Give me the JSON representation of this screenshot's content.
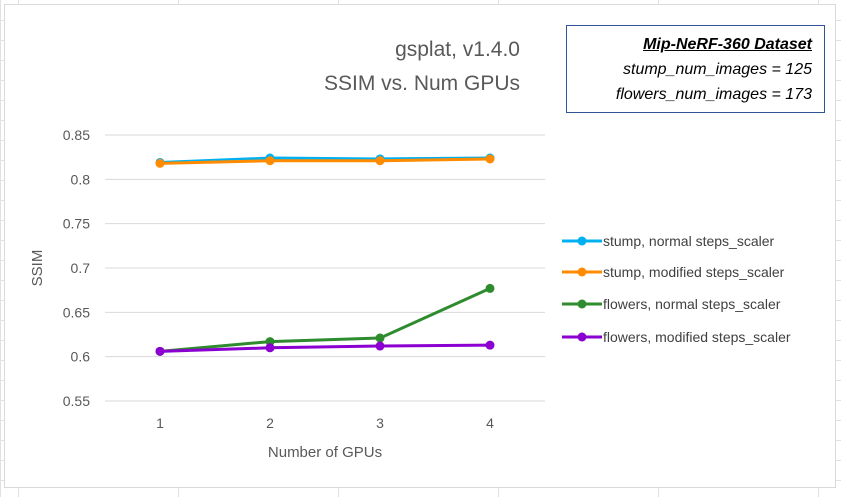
{
  "chart_data": {
    "type": "line",
    "title": "gsplat, v1.4.0",
    "subtitle": "SSIM vs. Num GPUs",
    "xlabel": "Number of GPUs",
    "ylabel": "SSIM",
    "categories": [
      "1",
      "2",
      "3",
      "4"
    ],
    "y_ticks": [
      "0.55",
      "0.6",
      "0.65",
      "0.7",
      "0.75",
      "0.8",
      "0.85"
    ],
    "ylim": [
      0.55,
      0.85
    ],
    "grid": "horizontal",
    "legend_position": "right",
    "series": [
      {
        "name": "stump, normal steps_scaler",
        "color": "#00b0f0",
        "values": [
          0.819,
          0.824,
          0.823,
          0.824
        ]
      },
      {
        "name": "stump, modified steps_scaler",
        "color": "#ff8c00",
        "values": [
          0.818,
          0.821,
          0.821,
          0.823
        ]
      },
      {
        "name": "flowers, normal steps_scaler",
        "color": "#2e8b2e",
        "values": [
          0.606,
          0.617,
          0.621,
          0.677
        ]
      },
      {
        "name": "flowers, modified steps_scaler",
        "color": "#8b00d0",
        "values": [
          0.606,
          0.61,
          0.612,
          0.613
        ]
      }
    ]
  },
  "dataset_box": {
    "heading": "Mip-NeRF-360 Dataset",
    "line1": "stump_num_images = 125",
    "line2": "flowers_num_images = 173"
  }
}
